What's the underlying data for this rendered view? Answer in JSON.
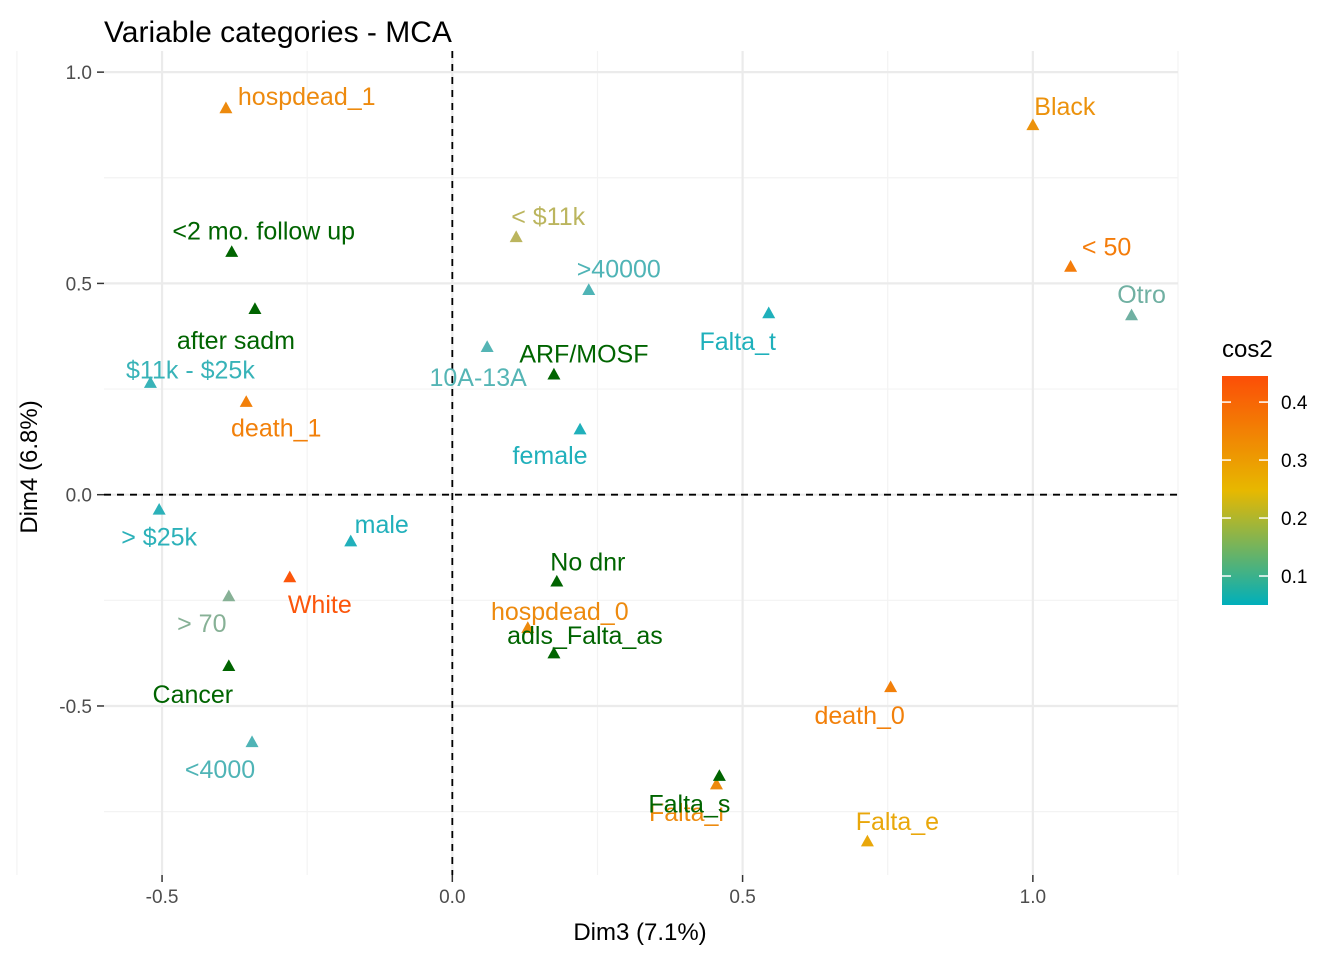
{
  "chart_data": {
    "type": "scatter",
    "title": "Variable categories - MCA",
    "xlabel": "Dim3 (7.1%)",
    "ylabel": "Dim4 (6.8%)",
    "xlim": [
      -0.6,
      1.25
    ],
    "ylim": [
      -0.9,
      1.05
    ],
    "xticks": [
      -0.5,
      0.0,
      0.5,
      1.0
    ],
    "xtick_labels": [
      "-0.5",
      "0.0",
      "0.5",
      "1.0"
    ],
    "yticks": [
      -0.5,
      0.0,
      0.5,
      1.0
    ],
    "ytick_labels": [
      "-0.5",
      "0.0",
      "0.5",
      "1.0"
    ],
    "grid": true,
    "reference_lines": [
      {
        "axis": "x",
        "value": 0,
        "style": "dashed"
      },
      {
        "axis": "y",
        "value": 0,
        "style": "dashed"
      }
    ],
    "marker": "triangle",
    "legend": {
      "title": "cos2",
      "type": "colorbar",
      "ticks": [
        0.1,
        0.2,
        0.3,
        0.4
      ],
      "tick_labels": [
        "0.1",
        "0.2",
        "0.3",
        "0.4"
      ],
      "range": [
        0.05,
        0.445
      ],
      "colors": [
        "#00AFBB",
        "#E7B800",
        "#FC4E07"
      ],
      "position": "right"
    },
    "points": [
      {
        "label": "hospdead_1",
        "x": -0.39,
        "y": 0.915,
        "color": "#ed8a0e"
      },
      {
        "label": "Black",
        "x": 1.0,
        "y": 0.875,
        "color": "#ec920c"
      },
      {
        "label": "<2 mo. follow up",
        "x": -0.38,
        "y": 0.575,
        "color": "#006400"
      },
      {
        "label": "< $11k",
        "x": 0.11,
        "y": 0.61,
        "color": "#bbb55e"
      },
      {
        "label": "< 50",
        "x": 1.065,
        "y": 0.54,
        "color": "#f47c0a"
      },
      {
        "label": ">40000",
        "x": 0.235,
        "y": 0.485,
        "color": "#4fb4b6"
      },
      {
        "label": "Otro",
        "x": 1.17,
        "y": 0.425,
        "color": "#70b0a2"
      },
      {
        "label": "after sadm",
        "x": -0.34,
        "y": 0.44,
        "color": "#006400"
      },
      {
        "label": "10A-13A",
        "x": 0.06,
        "y": 0.35,
        "color": "#55b5b5"
      },
      {
        "label": "Falta_t",
        "x": 0.545,
        "y": 0.43,
        "color": "#1fb0bb"
      },
      {
        "label": "ARF/MOSF",
        "x": 0.175,
        "y": 0.285,
        "color": "#006400"
      },
      {
        "label": "$11k - $25k",
        "x": -0.52,
        "y": 0.265,
        "color": "#38b3b8"
      },
      {
        "label": "death_1",
        "x": -0.355,
        "y": 0.22,
        "color": "#f2800a"
      },
      {
        "label": "female",
        "x": 0.22,
        "y": 0.155,
        "color": "#20b0bb"
      },
      {
        "label": "> $25k",
        "x": -0.505,
        "y": -0.035,
        "color": "#2cb1b9"
      },
      {
        "label": "male",
        "x": -0.175,
        "y": -0.11,
        "color": "#21b0bb"
      },
      {
        "label": "No dnr",
        "x": 0.18,
        "y": -0.205,
        "color": "#006400"
      },
      {
        "label": "White",
        "x": -0.28,
        "y": -0.195,
        "color": "#fc560b"
      },
      {
        "label": "> 70",
        "x": -0.385,
        "y": -0.24,
        "color": "#87b196"
      },
      {
        "label": "hospdead_0",
        "x": 0.13,
        "y": -0.315,
        "color": "#ed8a0e"
      },
      {
        "label": "adls_Falta_as",
        "x": 0.175,
        "y": -0.375,
        "color": "#006400"
      },
      {
        "label": "Cancer",
        "x": -0.385,
        "y": -0.405,
        "color": "#006400"
      },
      {
        "label": "death_0",
        "x": 0.755,
        "y": -0.455,
        "color": "#f2800a"
      },
      {
        "label": "<4000",
        "x": -0.345,
        "y": -0.585,
        "color": "#4fb4b6"
      },
      {
        "label": "Falta_i",
        "x": 0.455,
        "y": -0.685,
        "color": "#ed8a0e"
      },
      {
        "label": "Falta_s",
        "x": 0.46,
        "y": -0.665,
        "color": "#006400"
      },
      {
        "label": "Falta_e",
        "x": 0.715,
        "y": -0.82,
        "color": "#e9a70a"
      }
    ]
  }
}
